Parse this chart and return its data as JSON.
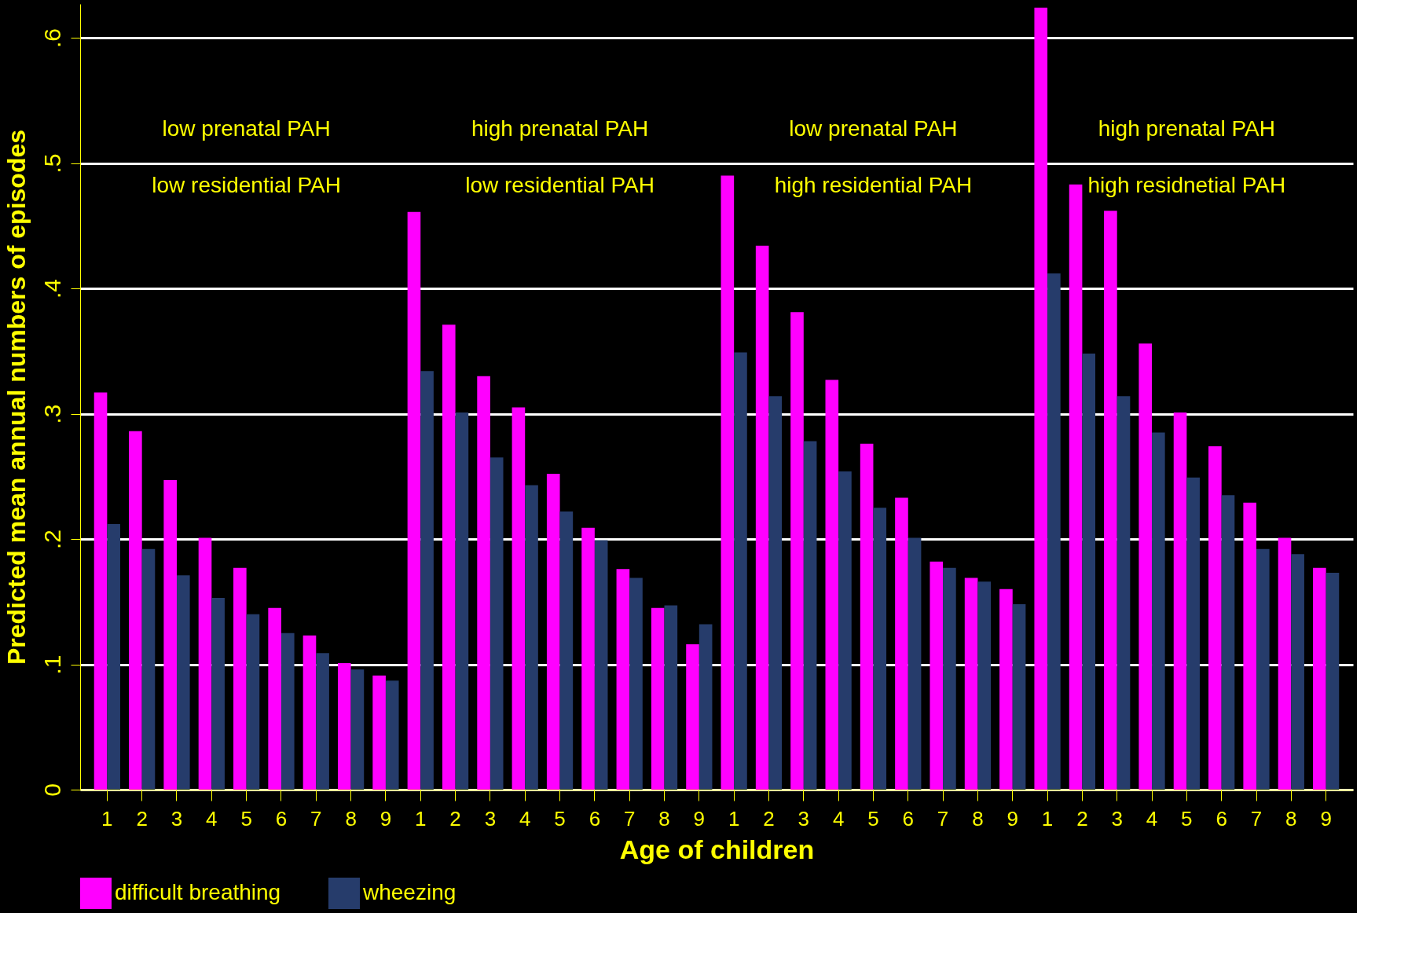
{
  "chart_data": {
    "type": "bar",
    "categories": [
      "1",
      "2",
      "3",
      "4",
      "5",
      "6",
      "7",
      "8",
      "9",
      "1",
      "2",
      "3",
      "4",
      "5",
      "6",
      "7",
      "8",
      "9",
      "1",
      "2",
      "3",
      "4",
      "5",
      "6",
      "7",
      "8",
      "9",
      "1",
      "2",
      "3",
      "4",
      "5",
      "6",
      "7",
      "8",
      "9"
    ],
    "series": [
      {
        "name": "difficult breathing",
        "color": "#ff00ff",
        "values": [
          0.317,
          0.286,
          0.247,
          0.201,
          0.177,
          0.145,
          0.123,
          0.101,
          0.091,
          0.461,
          0.371,
          0.33,
          0.305,
          0.252,
          0.209,
          0.176,
          0.145,
          0.116,
          0.49,
          0.434,
          0.381,
          0.327,
          0.276,
          0.233,
          0.182,
          0.169,
          0.16,
          0.624,
          0.483,
          0.462,
          0.356,
          0.301,
          0.274,
          0.229,
          0.201,
          0.177
        ]
      },
      {
        "name": "wheezing",
        "color": "#263c6b",
        "values": [
          0.212,
          0.192,
          0.171,
          0.153,
          0.14,
          0.125,
          0.109,
          0.096,
          0.087,
          0.334,
          0.301,
          0.265,
          0.243,
          0.222,
          0.199,
          0.169,
          0.147,
          0.132,
          0.349,
          0.314,
          0.278,
          0.254,
          0.225,
          0.201,
          0.177,
          0.166,
          0.148,
          0.412,
          0.348,
          0.314,
          0.285,
          0.249,
          0.235,
          0.192,
          0.188,
          0.173
        ]
      }
    ],
    "xlabel": "Age of children",
    "ylabel": "Predicted mean annual numbers of episodes",
    "ylim": [
      0,
      0.627
    ],
    "yticks": [
      0,
      {
        "value": 0.1,
        "label": ".1"
      },
      {
        "value": 0.2,
        "label": ".2"
      },
      {
        "value": 0.3,
        "label": ".3"
      },
      {
        "value": 0.4,
        "label": ".4"
      },
      {
        "value": 0.5,
        "label": ".5"
      },
      {
        "value": 0.6,
        "label": ".6"
      }
    ],
    "annotations": [
      "low prenatal PAH",
      "low residential PAH",
      "high prenatal PAH",
      "low residential PAH",
      "low prenatal PAH",
      "high residential PAH",
      "high prenatal PAH",
      "high residnetial PAH"
    ],
    "grid": "y",
    "legend": "bottom"
  }
}
